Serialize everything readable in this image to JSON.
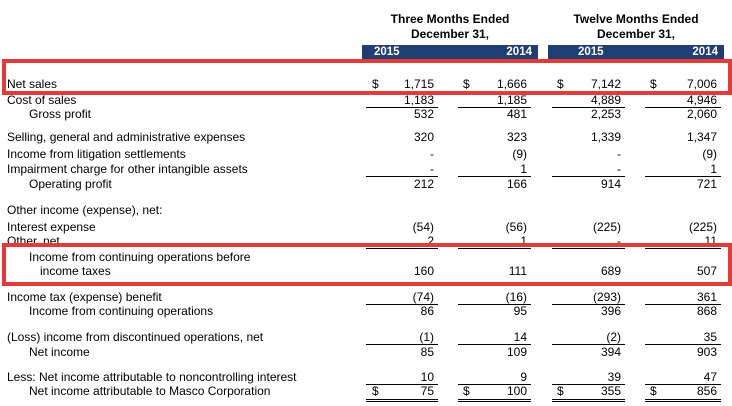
{
  "header": {
    "group1_line1": "Three Months Ended",
    "group1_line2": "December 31,",
    "group2_line1": "Twelve Months Ended",
    "group2_line2": "December 31,",
    "years": [
      "2015",
      "2014",
      "2015",
      "2014"
    ]
  },
  "currency_symbol": "$",
  "rows": [
    {
      "label": "Net sales",
      "values": [
        "1,715",
        "1,666",
        "7,142",
        "7,006"
      ]
    },
    {
      "label": "Cost of sales",
      "values": [
        "1,183",
        "1,185",
        "4,889",
        "4,946"
      ]
    },
    {
      "label": "Gross profit",
      "values": [
        "532",
        "481",
        "2,253",
        "2,060"
      ]
    },
    {
      "label": "Selling, general and administrative expenses",
      "values": [
        "320",
        "323",
        "1,339",
        "1,347"
      ]
    },
    {
      "label": "Income from litigation settlements",
      "values": [
        "-",
        "(9)",
        "-",
        "(9)"
      ]
    },
    {
      "label": "Impairment charge for other intangible assets",
      "values": [
        "-",
        "1",
        "-",
        "1"
      ]
    },
    {
      "label": "Operating profit",
      "values": [
        "212",
        "166",
        "914",
        "721"
      ]
    },
    {
      "label": "Other income (expense), net:",
      "values": []
    },
    {
      "label": "Interest expense",
      "values": [
        "(54)",
        "(56)",
        "(225)",
        "(225)"
      ]
    },
    {
      "label": "Other, net",
      "values": [
        "2",
        "1",
        "-",
        "11"
      ]
    },
    {
      "label": "Income from continuing operations before",
      "values": []
    },
    {
      "label": "income taxes",
      "values": [
        "160",
        "111",
        "689",
        "507"
      ]
    },
    {
      "label": "Income tax (expense) benefit",
      "values": [
        "(74)",
        "(16)",
        "(293)",
        "361"
      ]
    },
    {
      "label": "Income from continuing operations",
      "values": [
        "86",
        "95",
        "396",
        "868"
      ]
    },
    {
      "label": "(Loss) income from discontinued operations, net",
      "values": [
        "(1)",
        "14",
        "(2)",
        "35"
      ]
    },
    {
      "label": "Net income",
      "values": [
        "85",
        "109",
        "394",
        "903"
      ]
    },
    {
      "label": "Less: Net income attributable to noncontrolling interest",
      "values": [
        "10",
        "9",
        "39",
        "47"
      ]
    },
    {
      "label": "Net income attributable to Masco Corporation",
      "values": [
        "75",
        "100",
        "355",
        "856"
      ]
    }
  ],
  "highlight_color": "#e63a3a",
  "header_bar_color": "#1f3f73"
}
